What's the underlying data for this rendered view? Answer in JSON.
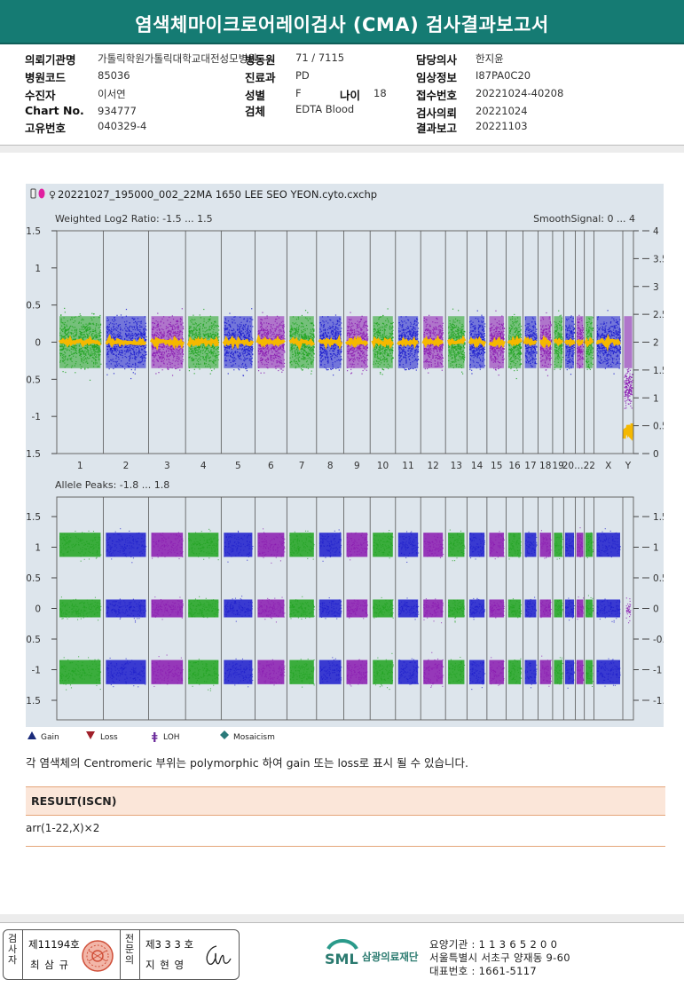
{
  "title": "염색체마이크로어레이검사 (CMA) 검사결과보고서",
  "info": {
    "col1": [
      {
        "label": "의뢰기관명",
        "value": "가톨릭학원가톨릭대학교대전성모병원"
      },
      {
        "label": "병원코드",
        "value": "85036"
      },
      {
        "label": "수진자",
        "value": "이서연"
      },
      {
        "label": "Chart No.",
        "value": "934777"
      },
      {
        "label": "고유번호",
        "value": "040329-4"
      }
    ],
    "col2": [
      {
        "label": "병동원",
        "value": "71 / 7115"
      },
      {
        "label": "진료과",
        "value": "PD"
      },
      {
        "label": "성별",
        "value": "F"
      },
      {
        "label": "검체",
        "value": "EDTA Blood"
      }
    ],
    "age_label": "나이",
    "age_value": "18",
    "col3": [
      {
        "label": "담당의사",
        "value": "한지윤"
      },
      {
        "label": "임상정보",
        "value": "I87PA0C20"
      },
      {
        "label": "접수번호",
        "value": "20221024-40208"
      },
      {
        "label": "검사의뢰",
        "value": "20221024"
      },
      {
        "label": "결과보고",
        "value": "20221103"
      }
    ]
  },
  "plot": {
    "filename": "20221027_195000_002_22MA 1650 LEE SEO YEON.cyto.cxchp",
    "top_left_label": "Weighted Log2 Ratio: -1.5 ... 1.5",
    "top_right_label": "SmoothSignal: 0 ... 4",
    "bottom_label": "Allele Peaks: -1.8 ... 1.8",
    "top_left_ticks": [
      "1.5",
      "1",
      "0.5",
      "0",
      "-0.5",
      "-1",
      "-1.5"
    ],
    "top_right_ticks": [
      "4",
      "3.5",
      "3",
      "2.5",
      "2",
      "1.5",
      "1",
      "0.5",
      "0"
    ],
    "bottom_ticks": [
      "1.5",
      "1",
      "0.5",
      "0",
      "-0.5",
      "-1",
      "-1.5"
    ],
    "chromosomes": [
      "1",
      "2",
      "3",
      "4",
      "5",
      "6",
      "7",
      "8",
      "9",
      "10",
      "11",
      "12",
      "13",
      "14",
      "15",
      "16",
      "17",
      "18",
      "19",
      "20",
      "21",
      "22",
      "X",
      "Y"
    ],
    "chrom_label_text": [
      "1",
      "2",
      "3",
      "4",
      "5",
      "6",
      "7",
      "8",
      "9",
      "10",
      "11",
      "12",
      "13",
      "14",
      "15",
      "16",
      "17",
      "18",
      "19",
      "20…22",
      "X",
      "Y"
    ],
    "colors": {
      "green": "#1fa31f",
      "blue": "#1c1ccc",
      "purple": "#8a1ab0",
      "smooth": "#f5b800",
      "background": "#dde5ec"
    }
  },
  "legend": [
    {
      "label": "Gain",
      "icon": "up-triangle-icon",
      "color": "#1a2a7a"
    },
    {
      "label": "Loss",
      "icon": "down-triangle-icon",
      "color": "#a0202a"
    },
    {
      "label": "LOH",
      "icon": "loh-icon",
      "color": "#6a2a9a"
    },
    {
      "label": "Mosaicism",
      "icon": "diamond-icon",
      "color": "#2a7a7a"
    }
  ],
  "note": "각 염색체의 Centromeric 부위는 polymorphic 하여 gain 또는 loss로 표시 될 수 있습니다.",
  "result": {
    "header": "RESULT(ISCN)",
    "value": "arr(1-22,X)×2"
  },
  "footer": {
    "signer1": {
      "role_chars": [
        "검",
        "사",
        "자"
      ],
      "license": "제11194호",
      "name": "최 삼 규"
    },
    "signer2": {
      "role_chars": [
        "전",
        "문",
        "의"
      ],
      "license": "제3 3 3 호",
      "name": "지 현 영"
    },
    "org_logo": "SML",
    "org_name": "삼광의료재단",
    "lines": [
      "요양기관 : 1 1 3 6 5 2 0 0",
      "서울특별시 서초구 양재동 9-60",
      "대표번호 : 1661-5117"
    ]
  }
}
